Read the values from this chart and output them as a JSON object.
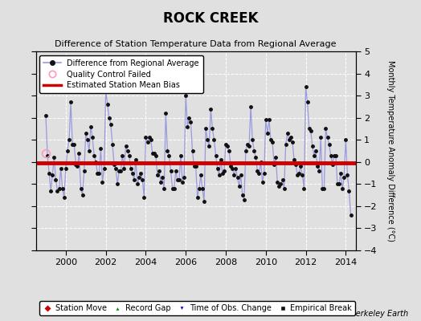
{
  "title": "ROCK CREEK",
  "subtitle": "Difference of Station Temperature Data from Regional Average",
  "ylabel": "Monthly Temperature Anomaly Difference (°C)",
  "xlim": [
    1998.5,
    2014.5
  ],
  "ylim": [
    -4,
    5
  ],
  "yticks": [
    -4,
    -3,
    -2,
    -1,
    0,
    1,
    2,
    3,
    4,
    5
  ],
  "xticks": [
    2000,
    2002,
    2004,
    2006,
    2008,
    2010,
    2012,
    2014
  ],
  "bias_value": -0.05,
  "bg_color": "#e0e0e0",
  "plot_bg_color": "#e0e0e0",
  "line_color": "#5555bb",
  "line_color_light": "#9999dd",
  "marker_color": "#111111",
  "bias_color": "#cc0000",
  "qc_color": "#ff99bb",
  "watermark": "Berkeley Earth",
  "data_x": [
    1999.0,
    1999.083,
    1999.167,
    1999.25,
    1999.333,
    1999.417,
    1999.5,
    1999.583,
    1999.667,
    1999.75,
    1999.833,
    1999.917,
    2000.0,
    2000.083,
    2000.167,
    2000.25,
    2000.333,
    2000.417,
    2000.5,
    2000.583,
    2000.667,
    2000.75,
    2000.833,
    2000.917,
    2001.0,
    2001.083,
    2001.167,
    2001.25,
    2001.333,
    2001.417,
    2001.5,
    2001.583,
    2001.667,
    2001.75,
    2001.833,
    2001.917,
    2002.0,
    2002.083,
    2002.167,
    2002.25,
    2002.333,
    2002.417,
    2002.5,
    2002.583,
    2002.667,
    2002.75,
    2002.833,
    2002.917,
    2003.0,
    2003.083,
    2003.167,
    2003.25,
    2003.333,
    2003.417,
    2003.5,
    2003.583,
    2003.667,
    2003.75,
    2003.833,
    2003.917,
    2004.0,
    2004.083,
    2004.167,
    2004.25,
    2004.333,
    2004.417,
    2004.5,
    2004.583,
    2004.667,
    2004.75,
    2004.833,
    2004.917,
    2005.0,
    2005.083,
    2005.167,
    2005.25,
    2005.333,
    2005.417,
    2005.5,
    2005.583,
    2005.667,
    2005.75,
    2005.833,
    2005.917,
    2006.0,
    2006.083,
    2006.167,
    2006.25,
    2006.333,
    2006.417,
    2006.5,
    2006.583,
    2006.667,
    2006.75,
    2006.833,
    2006.917,
    2007.0,
    2007.083,
    2007.167,
    2007.25,
    2007.333,
    2007.417,
    2007.5,
    2007.583,
    2007.667,
    2007.75,
    2007.833,
    2007.917,
    2008.0,
    2008.083,
    2008.167,
    2008.25,
    2008.333,
    2008.417,
    2008.5,
    2008.583,
    2008.667,
    2008.75,
    2008.833,
    2008.917,
    2009.0,
    2009.083,
    2009.167,
    2009.25,
    2009.333,
    2009.417,
    2009.5,
    2009.583,
    2009.667,
    2009.75,
    2009.833,
    2009.917,
    2010.0,
    2010.083,
    2010.167,
    2010.25,
    2010.333,
    2010.417,
    2010.5,
    2010.583,
    2010.667,
    2010.75,
    2010.833,
    2010.917,
    2011.0,
    2011.083,
    2011.167,
    2011.25,
    2011.333,
    2011.417,
    2011.5,
    2011.583,
    2011.667,
    2011.75,
    2011.833,
    2011.917,
    2012.0,
    2012.083,
    2012.167,
    2012.25,
    2012.333,
    2012.417,
    2012.5,
    2012.583,
    2012.667,
    2012.75,
    2012.833,
    2012.917,
    2013.0,
    2013.083,
    2013.167,
    2013.25,
    2013.333,
    2013.417,
    2013.5,
    2013.583,
    2013.667,
    2013.75,
    2013.833,
    2013.917,
    2014.0,
    2014.083,
    2014.167,
    2014.25
  ],
  "data_y": [
    2.1,
    0.3,
    -0.5,
    -1.3,
    -0.6,
    0.2,
    -0.8,
    -1.3,
    -1.2,
    -0.3,
    -1.2,
    -1.6,
    -0.3,
    0.5,
    1.0,
    2.7,
    0.8,
    0.8,
    -0.1,
    -0.2,
    0.4,
    -1.2,
    -1.5,
    -0.4,
    1.3,
    1.0,
    0.5,
    1.6,
    1.1,
    0.3,
    0.0,
    -0.5,
    -0.5,
    0.6,
    -0.9,
    -0.3,
    3.2,
    2.6,
    2.0,
    1.7,
    0.8,
    -0.1,
    -0.3,
    -1.0,
    -0.4,
    -0.4,
    0.3,
    -0.3,
    0.7,
    0.5,
    0.3,
    -0.3,
    -0.5,
    -0.8,
    0.1,
    -1.0,
    -0.7,
    -0.5,
    -0.8,
    -1.6,
    1.1,
    0.9,
    1.1,
    1.0,
    0.4,
    0.4,
    0.3,
    -0.6,
    -0.4,
    -0.9,
    -0.7,
    -1.2,
    2.2,
    0.5,
    0.3,
    -0.4,
    -1.2,
    -1.2,
    -0.4,
    -0.8,
    -0.8,
    0.3,
    -0.9,
    -0.7,
    3.0,
    1.6,
    2.0,
    1.8,
    0.5,
    -0.2,
    -0.2,
    -1.6,
    -1.2,
    -0.6,
    -1.2,
    -1.8,
    1.5,
    1.0,
    0.7,
    2.4,
    1.5,
    1.0,
    0.3,
    -0.3,
    -0.6,
    0.1,
    -0.5,
    -0.4,
    0.8,
    0.7,
    0.5,
    -0.2,
    -0.3,
    -0.6,
    -0.3,
    -0.7,
    -1.1,
    -0.6,
    -1.5,
    -1.7,
    0.5,
    0.8,
    0.7,
    2.5,
    1.0,
    0.5,
    0.2,
    -0.4,
    -0.5,
    0.0,
    -0.9,
    -0.5,
    1.9,
    1.3,
    1.9,
    1.0,
    0.9,
    -0.1,
    0.2,
    -0.9,
    -1.1,
    -1.0,
    -0.8,
    -1.2,
    0.8,
    1.3,
    1.0,
    1.1,
    0.9,
    0.1,
    -0.1,
    -0.6,
    -0.5,
    -0.2,
    -0.6,
    -1.2,
    3.4,
    2.7,
    1.5,
    1.4,
    0.7,
    0.3,
    0.5,
    -0.2,
    -0.4,
    1.1,
    -1.2,
    -1.2,
    1.5,
    1.1,
    0.8,
    0.3,
    -0.1,
    0.3,
    0.3,
    -1.0,
    -1.0,
    -0.5,
    -1.2,
    -0.7,
    1.0,
    -0.6,
    -1.3,
    -2.4
  ],
  "qc_x": [
    1999.0
  ],
  "qc_y": [
    0.4
  ]
}
